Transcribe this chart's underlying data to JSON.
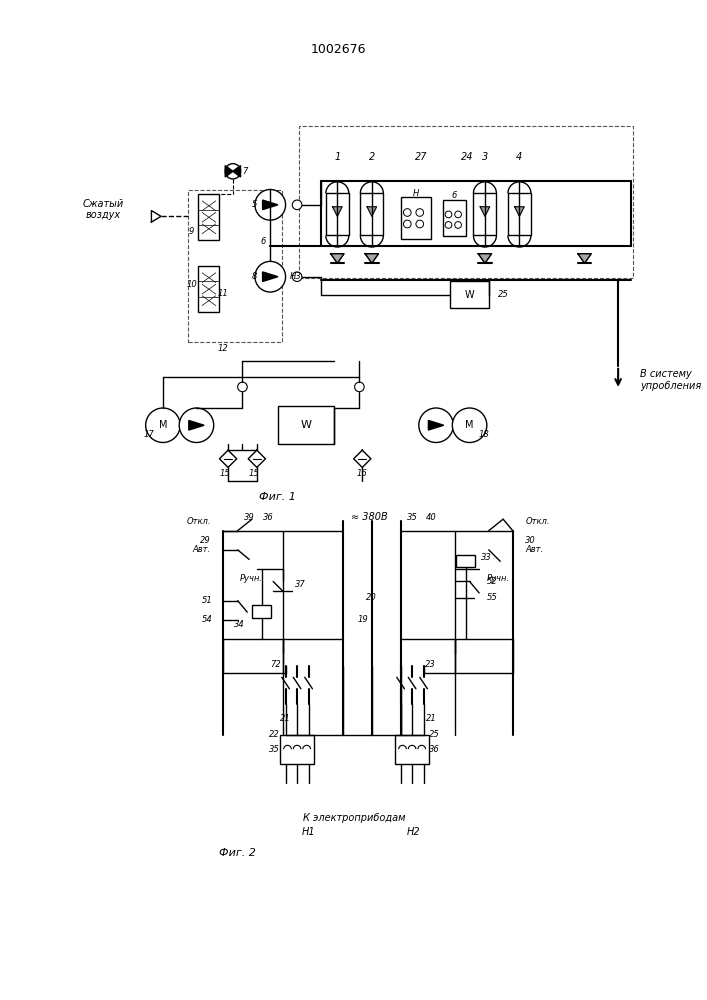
{
  "title": "1002676",
  "fig1_label": "Фиг. 1",
  "fig2_label": "Фиг. 2",
  "bg_color": "#ffffff",
  "line_color": "#000000",
  "text_color": "#000000",
  "compressed_air_label": "Сжатый\nвоздух",
  "system_label": "В систему\nупробления",
  "elec_label": "К электроприбодам"
}
